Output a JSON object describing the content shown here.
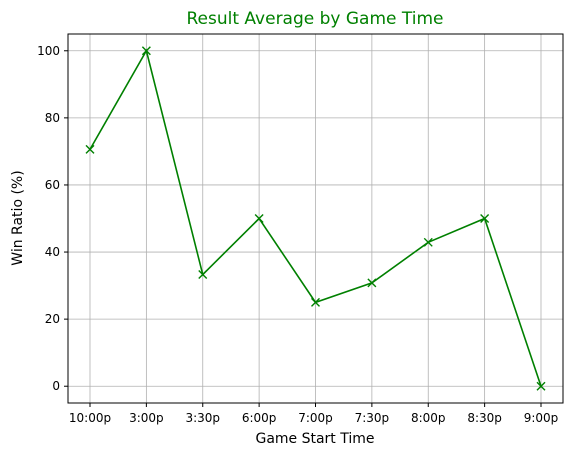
{
  "chart_data": {
    "type": "line",
    "title": "Result Average by Game Time",
    "xlabel": "Game Start Time",
    "ylabel": "Win Ratio (%)",
    "categories": [
      "10:00p",
      "3:00p",
      "3:30p",
      "6:00p",
      "7:00p",
      "7:30p",
      "8:00p",
      "8:30p",
      "9:00p"
    ],
    "series": [
      {
        "values": [
          70.6,
          100,
          33.3,
          50,
          25,
          30.8,
          42.9,
          50,
          0
        ]
      }
    ],
    "ylim": [
      -5,
      105
    ],
    "yticks": [
      0,
      20,
      40,
      60,
      80,
      100
    ],
    "grid": true,
    "line_color": "#008000",
    "marker": "x"
  }
}
